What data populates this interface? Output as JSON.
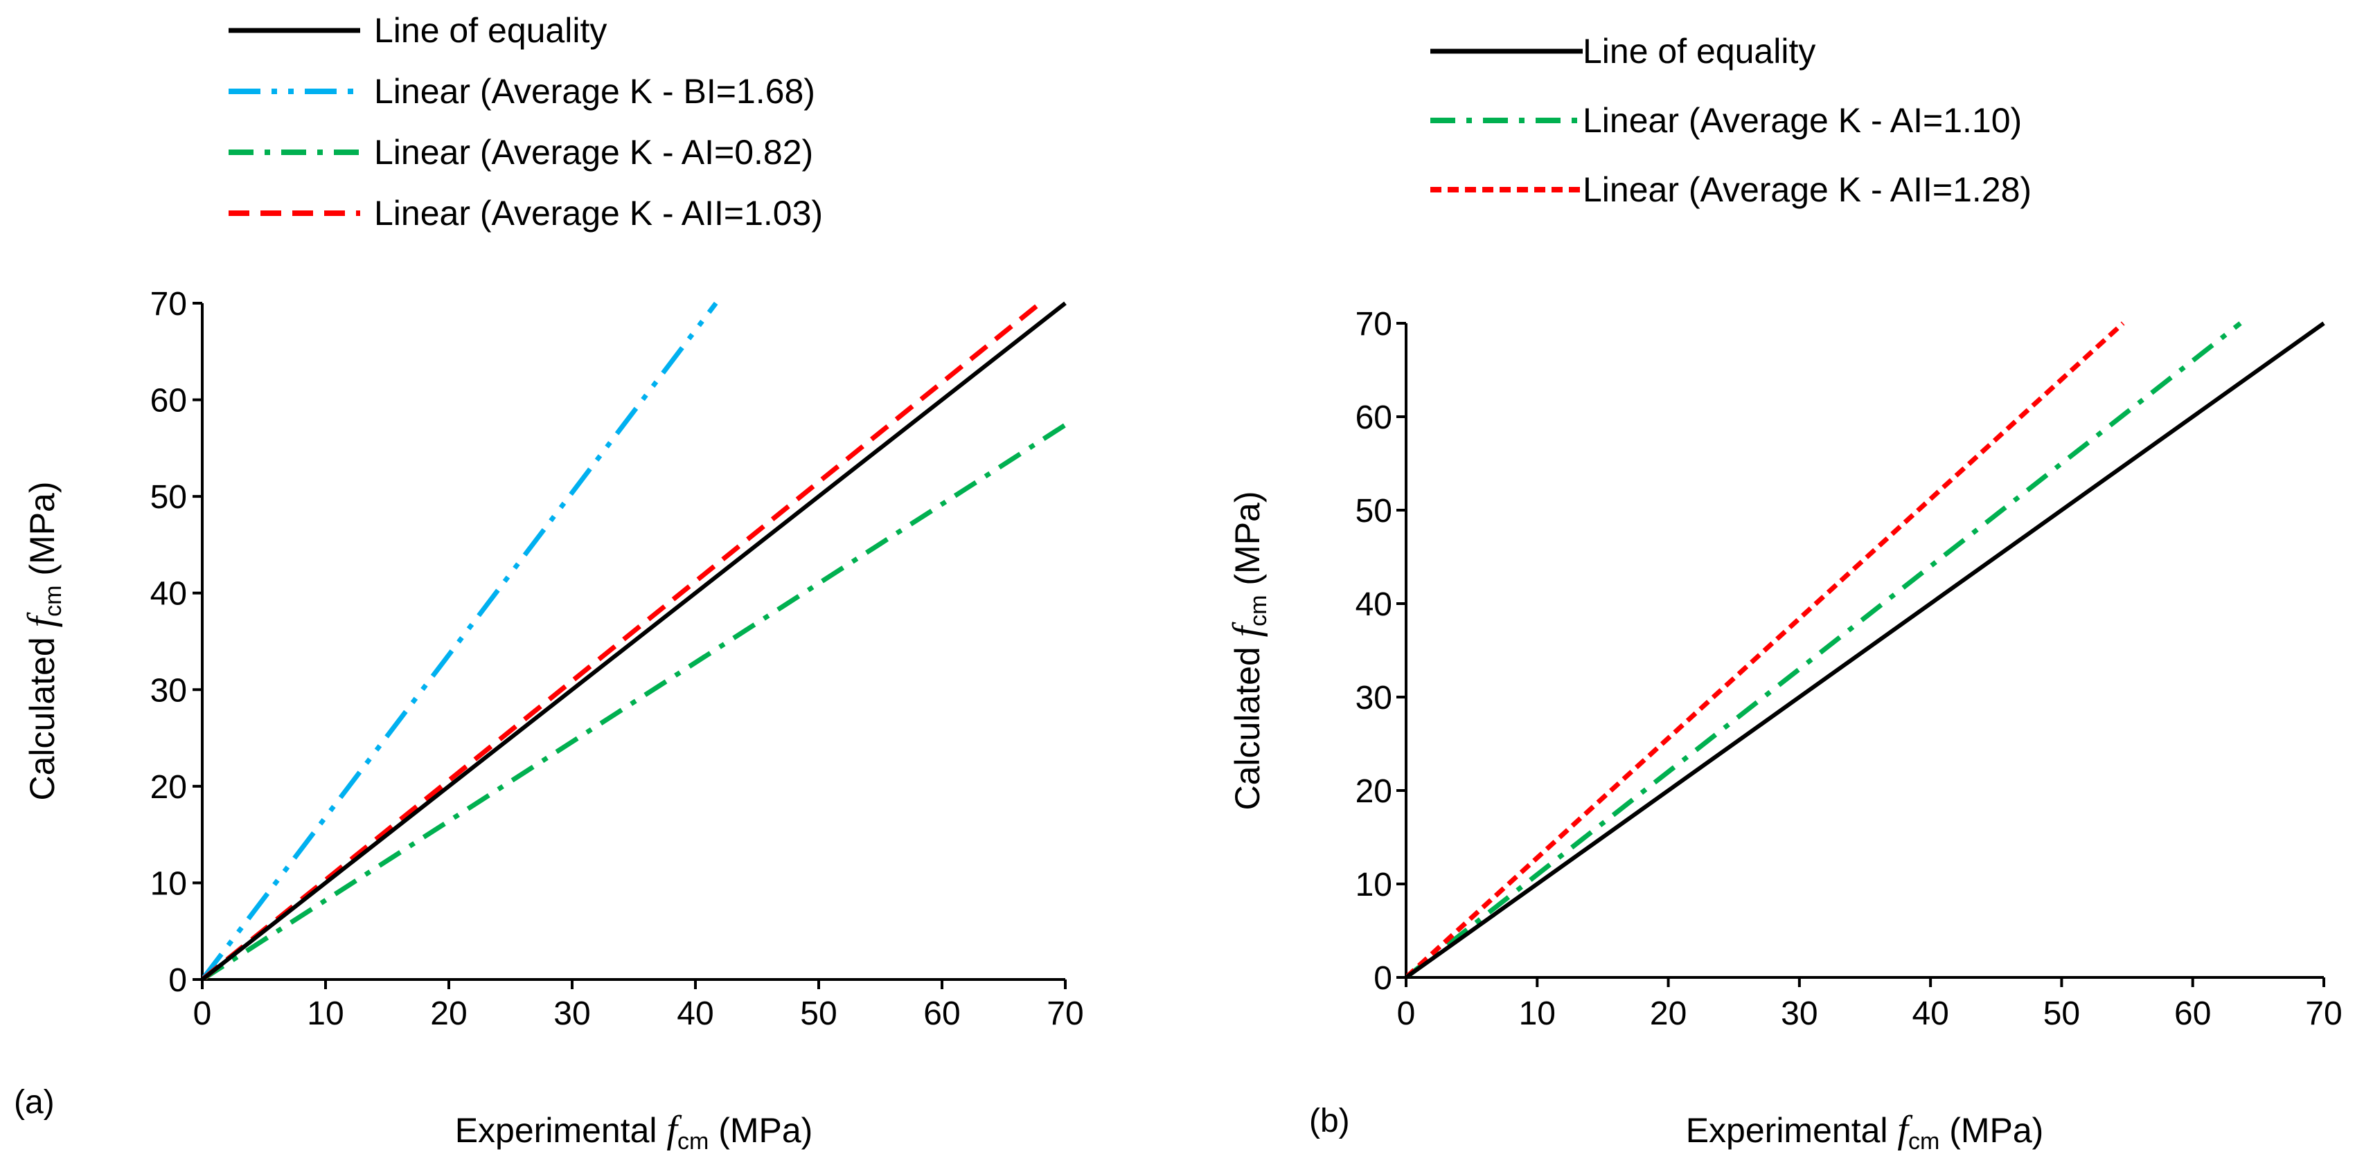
{
  "chart_data": [
    {
      "type": "line",
      "panel_label": "(a)",
      "xlabel": {
        "prefix": "Experimental",
        "sym": "f",
        "sub": "cm",
        "unit": "(MPa)"
      },
      "ylabel": {
        "prefix": "Calculated",
        "sym": "f",
        "sub": "cm",
        "unit": "(MPa)"
      },
      "xlim": [
        0,
        70
      ],
      "ylim": [
        0,
        70
      ],
      "xticks": [
        "0",
        "10",
        "20",
        "30",
        "40",
        "50",
        "60",
        "70"
      ],
      "yticks": [
        "0",
        "10",
        "20",
        "30",
        "40",
        "50",
        "60",
        "70"
      ],
      "grid": false,
      "legend_position": "top",
      "series": [
        {
          "name": "Line of equality",
          "slope": 1.0,
          "color": "#000000",
          "style": "solid"
        },
        {
          "name": "Linear (Average K - BI=1.68)",
          "slope": 1.68,
          "color": "#00B0F0",
          "style": "dash-dot-dot"
        },
        {
          "name": "Linear (Average K - AI=0.82)",
          "slope": 0.82,
          "color": "#00B050",
          "style": "dash-dot"
        },
        {
          "name": "Linear (Average K - AII=1.03)",
          "slope": 1.03,
          "color": "#FF0000",
          "style": "dash"
        }
      ]
    },
    {
      "type": "line",
      "panel_label": "(b)",
      "xlabel": {
        "prefix": "Experimental",
        "sym": "f",
        "sub": "cm",
        "unit": "(MPa)"
      },
      "ylabel": {
        "prefix": "Calculated",
        "sym": "f",
        "sub": "cm",
        "unit": "(MPa)"
      },
      "xlim": [
        0,
        70
      ],
      "ylim": [
        0,
        70
      ],
      "xticks": [
        "0",
        "10",
        "20",
        "30",
        "40",
        "50",
        "60",
        "70"
      ],
      "yticks": [
        "0",
        "10",
        "20",
        "30",
        "40",
        "50",
        "60",
        "70"
      ],
      "grid": false,
      "legend_position": "top",
      "series": [
        {
          "name": "Line of equality",
          "slope": 1.0,
          "color": "#000000",
          "style": "solid"
        },
        {
          "name": "Linear (Average K - AI=1.10)",
          "slope": 1.1,
          "color": "#00B050",
          "style": "dash-dot"
        },
        {
          "name": "Linear (Average K - AII=1.28)",
          "slope": 1.28,
          "color": "#FF0000",
          "style": "short-dash"
        }
      ]
    }
  ]
}
